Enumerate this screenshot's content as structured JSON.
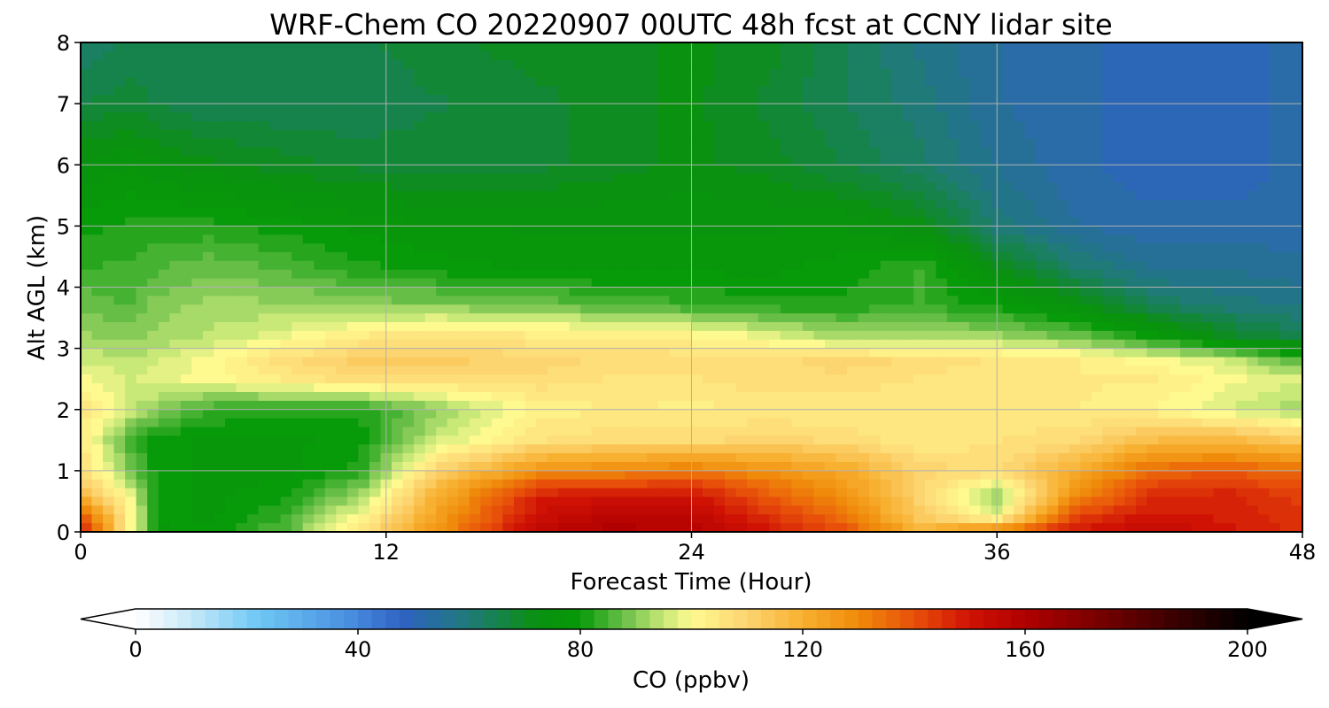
{
  "chart_data": {
    "type": "heatmap",
    "title": "WRF-Chem CO  20220907 00UTC 48h fcst at CCNY lidar site",
    "xlabel": "Forecast Time (Hour)",
    "ylabel": "Alt AGL (km)",
    "xlim": [
      0,
      48
    ],
    "ylim": [
      0,
      8
    ],
    "xticks": [
      0,
      12,
      24,
      36,
      48
    ],
    "yticks": [
      0,
      1,
      2,
      3,
      4,
      5,
      6,
      7,
      8
    ],
    "grid": true,
    "colorbar": {
      "label": "CO  (ppbv)",
      "vmin": 0,
      "vmax": 200,
      "ticks": [
        0,
        40,
        80,
        120,
        160,
        200
      ],
      "extend": "both",
      "stops": [
        {
          "v": 0,
          "c": "#ffffff"
        },
        {
          "v": 10,
          "c": "#c6e8f8"
        },
        {
          "v": 22,
          "c": "#6ec8f5"
        },
        {
          "v": 38,
          "c": "#4a90e0"
        },
        {
          "v": 48,
          "c": "#2f63c4"
        },
        {
          "v": 60,
          "c": "#1f7a78"
        },
        {
          "v": 72,
          "c": "#0a9010"
        },
        {
          "v": 80,
          "c": "#079a09"
        },
        {
          "v": 88,
          "c": "#6cc04a"
        },
        {
          "v": 95,
          "c": "#c8e878"
        },
        {
          "v": 100,
          "c": "#fffa90"
        },
        {
          "v": 110,
          "c": "#fcd470"
        },
        {
          "v": 120,
          "c": "#f8b030"
        },
        {
          "v": 130,
          "c": "#f08a0a"
        },
        {
          "v": 140,
          "c": "#e8500a"
        },
        {
          "v": 150,
          "c": "#d01205"
        },
        {
          "v": 160,
          "c": "#b00000"
        },
        {
          "v": 175,
          "c": "#700000"
        },
        {
          "v": 188,
          "c": "#350000"
        },
        {
          "v": 200,
          "c": "#000000"
        }
      ]
    },
    "x": [
      0,
      2,
      3,
      5,
      8,
      11,
      14,
      18,
      21,
      24,
      27,
      30,
      33,
      36,
      39,
      42,
      45,
      48
    ],
    "y": [
      0,
      0.25,
      0.6,
      1,
      1.5,
      2,
      2.5,
      2.8,
      3.2,
      3.7,
      4.3,
      5,
      6,
      7,
      8
    ],
    "z": [
      [
        150,
        100,
        78,
        80,
        86,
        106,
        128,
        156,
        160,
        158,
        150,
        140,
        120,
        135,
        150,
        155,
        150,
        145
      ],
      [
        140,
        100,
        80,
        78,
        84,
        100,
        124,
        152,
        158,
        156,
        145,
        135,
        112,
        98,
        142,
        150,
        148,
        145
      ],
      [
        118,
        98,
        80,
        78,
        80,
        92,
        120,
        148,
        150,
        150,
        138,
        128,
        110,
        90,
        128,
        145,
        148,
        142
      ],
      [
        108,
        88,
        80,
        78,
        78,
        82,
        110,
        128,
        130,
        133,
        128,
        122,
        110,
        108,
        120,
        136,
        138,
        135
      ],
      [
        104,
        85,
        80,
        78,
        78,
        80,
        96,
        106,
        108,
        108,
        110,
        108,
        104,
        106,
        108,
        116,
        118,
        112
      ],
      [
        106,
        95,
        90,
        84,
        82,
        82,
        90,
        102,
        104,
        103,
        104,
        104,
        104,
        104,
        104,
        102,
        96,
        92
      ],
      [
        100,
        96,
        98,
        100,
        104,
        108,
        108,
        108,
        106,
        106,
        108,
        108,
        106,
        104,
        104,
        104,
        100,
        96
      ],
      [
        96,
        94,
        96,
        100,
        108,
        112,
        112,
        110,
        108,
        108,
        108,
        110,
        108,
        106,
        104,
        100,
        96,
        85
      ],
      [
        92,
        90,
        92,
        94,
        98,
        104,
        106,
        104,
        104,
        102,
        98,
        92,
        92,
        92,
        88,
        80,
        70,
        65
      ],
      [
        88,
        86,
        90,
        92,
        92,
        90,
        90,
        88,
        86,
        84,
        82,
        82,
        84,
        80,
        74,
        64,
        60,
        58
      ],
      [
        84,
        84,
        86,
        88,
        86,
        82,
        80,
        78,
        78,
        78,
        78,
        80,
        84,
        72,
        62,
        56,
        56,
        55
      ],
      [
        80,
        82,
        82,
        82,
        80,
        78,
        76,
        76,
        76,
        76,
        76,
        76,
        72,
        60,
        54,
        52,
        52,
        52
      ],
      [
        74,
        76,
        74,
        72,
        70,
        68,
        68,
        68,
        70,
        72,
        70,
        66,
        62,
        56,
        52,
        50,
        50,
        52
      ],
      [
        66,
        68,
        66,
        64,
        64,
        64,
        66,
        68,
        70,
        72,
        68,
        64,
        60,
        54,
        52,
        50,
        50,
        52
      ],
      [
        62,
        64,
        64,
        64,
        64,
        66,
        68,
        70,
        70,
        72,
        70,
        64,
        58,
        54,
        52,
        50,
        50,
        52
      ]
    ]
  }
}
